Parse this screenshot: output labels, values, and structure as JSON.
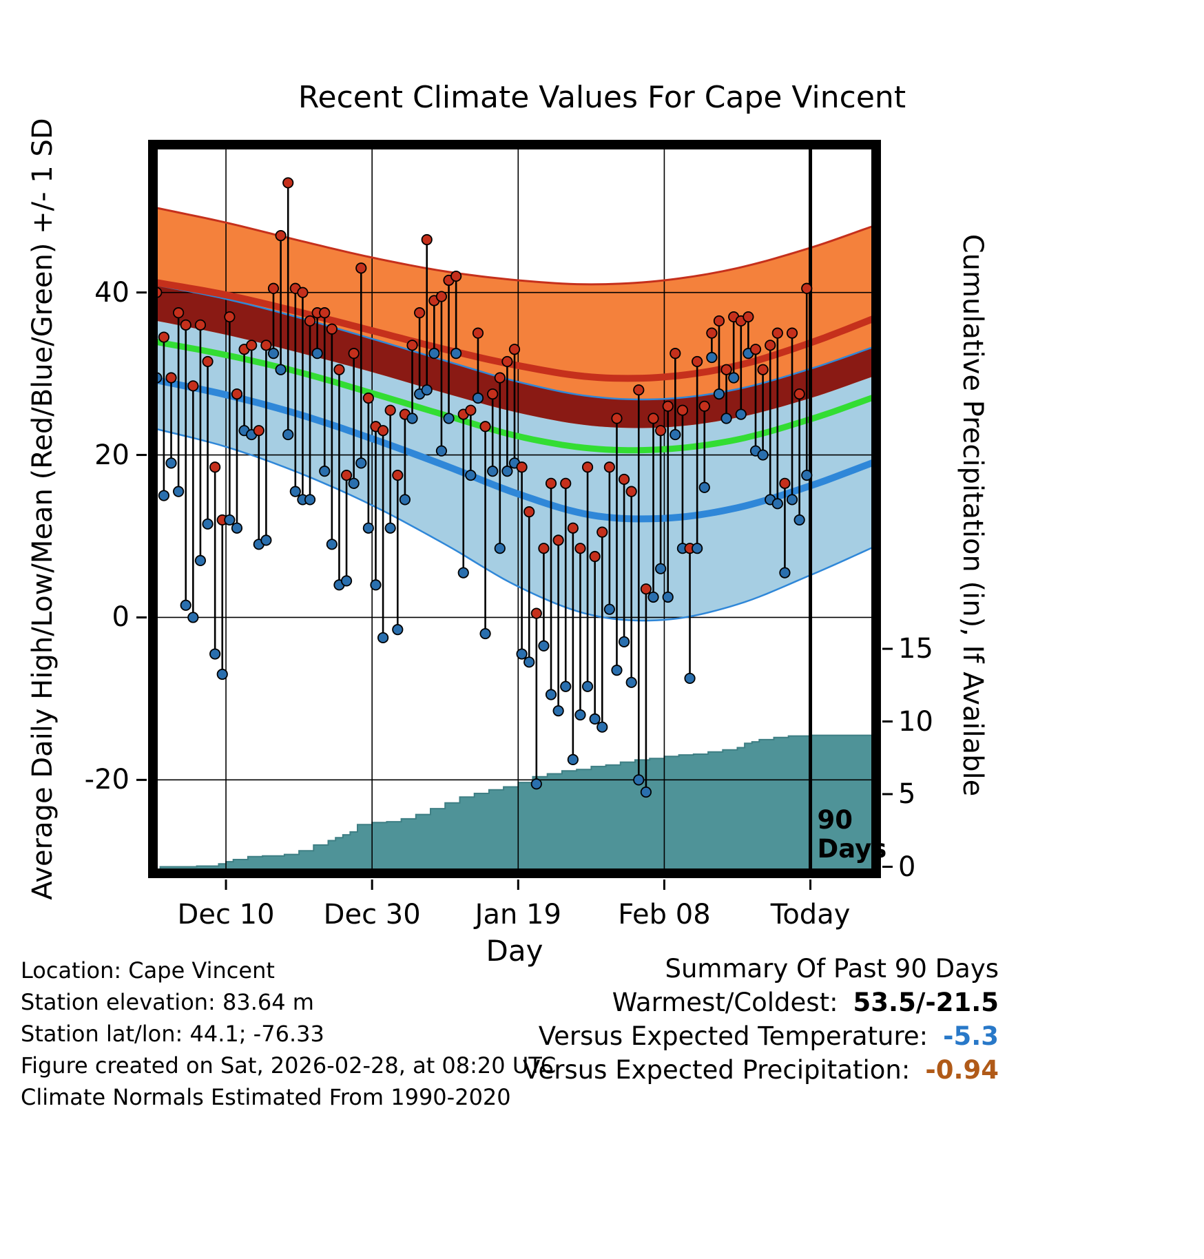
{
  "title": "Recent Climate Values For Cape Vincent",
  "colors": {
    "high_band": "#f4813c",
    "high_line": "#c5301c",
    "overlap_band": "#8a1a14",
    "mean_line": "#33dd33",
    "low_band": "#a6cee3",
    "low_line": "#2f87d8",
    "high_dot": "#c5301c",
    "low_dot": "#2a6fae",
    "precip_fill": "#4f9398",
    "precip_edge": "#3e7f84",
    "grid": "#000000",
    "temp_anomaly": "#2878c8",
    "precip_anomaly": "#b05a18"
  },
  "chart_data": {
    "type": "line",
    "title": "Recent Climate Values For Cape Vincent",
    "x_axis": {
      "label": "Day",
      "range_days": [
        0,
        99
      ],
      "ticks": [
        {
          "day": 10,
          "label": "Dec 10"
        },
        {
          "day": 30,
          "label": "Dec 30"
        },
        {
          "day": 50,
          "label": "Jan 19"
        },
        {
          "day": 70,
          "label": "Feb 08"
        },
        {
          "day": 90,
          "label": "Today"
        }
      ]
    },
    "left_axis": {
      "label": "Average Daily High/Low/Mean (Red/Blue/Green) +/- 1 SD",
      "range": [
        -31.5,
        58.2
      ],
      "ticks": [
        {
          "value": 40,
          "label": "40"
        },
        {
          "value": 20,
          "label": "20"
        },
        {
          "value": 0,
          "label": "0"
        },
        {
          "value": -20,
          "label": "-20"
        }
      ]
    },
    "right_axis": {
      "label": "Cumulative Precipitation (in), If Available",
      "range": [
        -0.45,
        49.7
      ],
      "ticks": [
        {
          "value": 15,
          "label": "15"
        },
        {
          "value": 10,
          "label": "10"
        },
        {
          "value": 5,
          "label": "5"
        },
        {
          "value": 0,
          "label": "0"
        }
      ]
    },
    "normals": {
      "control_days": [
        0,
        10,
        20,
        30,
        40,
        50,
        60,
        70,
        80,
        90,
        99
      ],
      "high_plus_sd": [
        50.5,
        48.6,
        46.4,
        44.3,
        42.6,
        41.5,
        41.0,
        41.5,
        43.0,
        45.5,
        48.3
      ],
      "high_mean": [
        41.3,
        39.7,
        37.6,
        35.3,
        33.0,
        31.0,
        29.6,
        29.6,
        31.0,
        33.8,
        36.9
      ],
      "high_minus_sd": [
        36.6,
        34.8,
        32.6,
        30.2,
        27.6,
        25.2,
        23.6,
        23.4,
        24.6,
        27.0,
        29.8
      ],
      "low_plus_sd": [
        41.0,
        39.2,
        36.9,
        34.3,
        31.6,
        29.0,
        27.2,
        26.9,
        28.1,
        30.6,
        33.4
      ],
      "mean": [
        34.0,
        32.3,
        30.2,
        27.6,
        24.9,
        22.3,
        20.8,
        20.7,
        21.9,
        24.4,
        27.2
      ],
      "low_mean": [
        29.3,
        27.4,
        25.0,
        22.0,
        18.7,
        15.2,
        12.6,
        12.2,
        13.5,
        16.2,
        19.2
      ],
      "low_minus_sd": [
        23.3,
        21.0,
        17.8,
        13.8,
        9.0,
        3.8,
        0.3,
        -0.3,
        1.6,
        5.2,
        8.8
      ]
    },
    "daily": {
      "first_day": 1,
      "highs": [
        40,
        34.5,
        29.5,
        37.5,
        36,
        28.5,
        36,
        31.5,
        18.5,
        12,
        37,
        27.5,
        33,
        33.5,
        23,
        33.5,
        40.5,
        47,
        53.5,
        40.5,
        40,
        36.5,
        37.5,
        37.5,
        35.5,
        30.5,
        17.5,
        32.5,
        43,
        27,
        23.5,
        23,
        25.5,
        17.5,
        25,
        33.5,
        37.5,
        46.5,
        39,
        39.5,
        41.5,
        42,
        25,
        25.5,
        35,
        23.5,
        27.5,
        29.5,
        31.5,
        33,
        18.5,
        13,
        0.5,
        8.5,
        16.5,
        9.5,
        16.5,
        11,
        8.5,
        18.5,
        7.5,
        10.5,
        18.5,
        24.5,
        17,
        15.5,
        28,
        3.5,
        24.5,
        23,
        26,
        32.5,
        25.5,
        8.5,
        31.5,
        26,
        35,
        36.5,
        30.5,
        37,
        36.5,
        37,
        33,
        30.5,
        33.5,
        35,
        16.5,
        35,
        27.5,
        40.5
      ],
      "lows": [
        29.5,
        15,
        19,
        15.5,
        1.5,
        0,
        7,
        11.5,
        -4.5,
        -7,
        12,
        11,
        23,
        22.5,
        9,
        9.5,
        32.5,
        30.5,
        22.5,
        15.5,
        14.5,
        14.5,
        32.5,
        18,
        9,
        4,
        4.5,
        16.5,
        19,
        11,
        4,
        -2.5,
        11,
        -1.5,
        14.5,
        24.5,
        27.5,
        28,
        32.5,
        20.5,
        24.5,
        32.5,
        5.5,
        17.5,
        27,
        -2,
        18,
        8.5,
        18,
        19,
        -4.5,
        -5.5,
        -20.5,
        -3.5,
        -9.5,
        -11.5,
        -8.5,
        -17.5,
        -12,
        -8.5,
        -12.5,
        -13.5,
        1,
        -6.5,
        -3,
        -8,
        -20,
        -21.5,
        2.5,
        6,
        2.5,
        22.5,
        8.5,
        -7.5,
        8.5,
        16,
        32,
        27.5,
        24.5,
        29.5,
        25,
        32.5,
        20.5,
        20,
        14.5,
        14,
        5.5,
        14.5,
        12,
        17.5
      ]
    },
    "precip_cumulative": {
      "days": [
        1,
        6,
        9,
        10,
        11,
        13,
        15,
        18,
        20,
        22,
        24,
        25,
        26,
        27,
        28,
        30,
        32,
        34,
        36,
        38,
        40,
        42,
        44,
        46,
        48,
        50,
        52,
        54,
        56,
        58,
        60,
        62,
        64,
        66,
        68,
        70,
        72,
        74,
        76,
        78,
        80,
        81,
        82,
        83,
        85,
        87,
        90,
        99
      ],
      "values": [
        0,
        0.05,
        0.2,
        0.35,
        0.5,
        0.7,
        0.75,
        0.85,
        1.1,
        1.5,
        1.8,
        2.0,
        2.2,
        2.4,
        2.9,
        3.05,
        3.1,
        3.3,
        3.6,
        4.0,
        4.4,
        4.8,
        5.05,
        5.3,
        5.5,
        5.8,
        6.2,
        6.4,
        6.6,
        6.7,
        6.9,
        7.0,
        7.2,
        7.35,
        7.45,
        7.6,
        7.7,
        7.75,
        7.9,
        8.05,
        8.2,
        8.5,
        8.6,
        8.75,
        8.9,
        9.0,
        9.05,
        9.05
      ]
    },
    "today_marker": {
      "day": 90,
      "labels": [
        "90",
        "Days"
      ]
    }
  },
  "footer": {
    "lines": [
      "Location: Cape Vincent",
      "Station elevation: 83.64 m",
      "Station lat/lon: 44.1; -76.33",
      "Figure created on Sat, 2026-02-28, at 08:20 UTC",
      "Climate Normals Estimated From 1990-2020"
    ]
  },
  "summary": {
    "title": "Summary Of Past 90 Days",
    "warmest_coldest_label": "Warmest/Coldest:",
    "warmest_coldest_value": "53.5/-21.5",
    "vs_temp_label": "Versus Expected Temperature:",
    "vs_temp_value": "-5.3",
    "vs_precip_label": "Versus Expected Precipitation:",
    "vs_precip_value": "-0.94"
  }
}
